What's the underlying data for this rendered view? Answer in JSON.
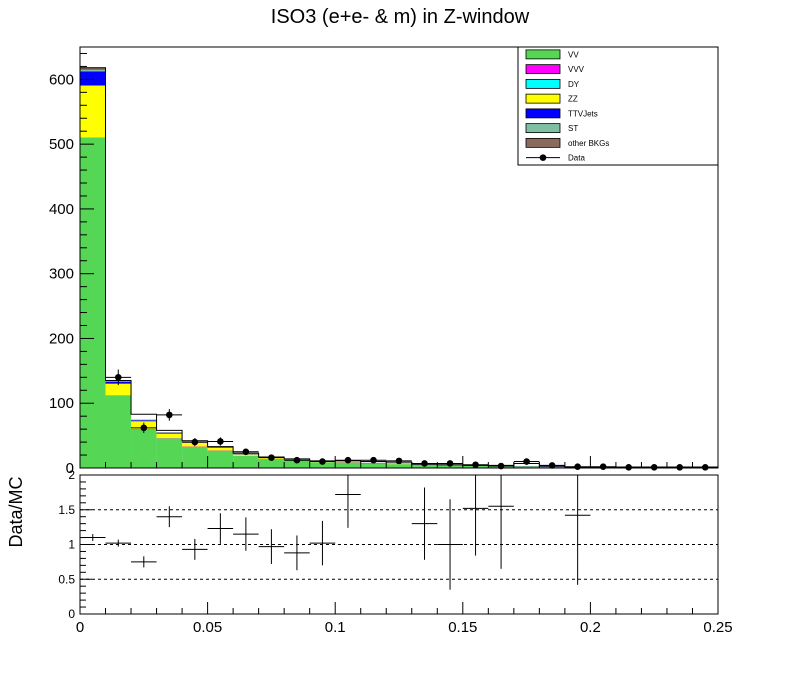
{
  "chart_data": {
    "type": "bar",
    "title": "ISO3 (e+e- & m) in Z-window",
    "xlabel": "",
    "ylabel": "",
    "ratio_ylabel": "Data/MC",
    "xlim": [
      0,
      0.25
    ],
    "ylim": [
      0,
      650
    ],
    "ratio_ylim": [
      0,
      2
    ],
    "bin_width": 0.01,
    "x_ticks": [
      "0",
      "0.05",
      "0.1",
      "0.15",
      "0.2",
      "0.25"
    ],
    "x_tick_values": [
      0,
      0.05,
      0.1,
      0.15,
      0.2,
      0.25
    ],
    "y_ticks": [
      "0",
      "100",
      "200",
      "300",
      "400",
      "500",
      "600"
    ],
    "y_tick_values": [
      0,
      100,
      200,
      300,
      400,
      500,
      600
    ],
    "ratio_y_ticks": [
      "0",
      "0.5",
      "1",
      "1.5",
      "2"
    ],
    "ratio_y_tick_values": [
      0,
      0.5,
      1,
      1.5,
      2
    ],
    "ratio_gridlines": [
      0.5,
      1,
      1.5
    ],
    "legend_position": "top-right",
    "series": [
      {
        "name": "VV",
        "color": "#55d655",
        "values": [
          510,
          112,
          60,
          46,
          33,
          27,
          19,
          14,
          12,
          9,
          8,
          7,
          6,
          5,
          4,
          3.5,
          3,
          2.5,
          2,
          2,
          1.5,
          1.5,
          1.2,
          1,
          1
        ]
      },
      {
        "name": "VVV",
        "color": "#ff00ff",
        "values": [
          0.5,
          0.2,
          0.1,
          0.1,
          0.1,
          0.1,
          0,
          0,
          0,
          0,
          0,
          0,
          0,
          0,
          0,
          0,
          0,
          0,
          0,
          0,
          0,
          0,
          0,
          0,
          0
        ]
      },
      {
        "name": "DY",
        "color": "#00ffff",
        "values": [
          0,
          0,
          0,
          0,
          0,
          0,
          0,
          0,
          0,
          0,
          0,
          0,
          0,
          0,
          0,
          0,
          0,
          0,
          0,
          0,
          0,
          0,
          0,
          0,
          0
        ]
      },
      {
        "name": "ZZ",
        "color": "#ffff00",
        "values": [
          80,
          18,
          12,
          7,
          6,
          4,
          2,
          1.5,
          1,
          0.8,
          0.6,
          0.5,
          0.4,
          0.3,
          0.3,
          0.2,
          0.2,
          0.1,
          0.1,
          0.1,
          0.1,
          0.1,
          0.1,
          0.1,
          0.1
        ]
      },
      {
        "name": "TTVJets",
        "color": "#0000ff",
        "values": [
          22,
          3,
          1.5,
          1.5,
          1,
          1,
          0.8,
          0.6,
          0.5,
          0.4,
          0.3,
          0.3,
          0.2,
          0.2,
          0.2,
          0.1,
          0.1,
          0.1,
          0.1,
          0.1,
          0.1,
          0.1,
          0.1,
          0.1,
          0.1
        ]
      },
      {
        "name": "ST",
        "color": "#7fbfa3",
        "values": [
          2,
          0.5,
          0.3,
          0.2,
          0.2,
          0.1,
          0.1,
          0.1,
          0.1,
          0,
          0,
          0,
          0,
          0,
          0,
          0,
          0,
          0,
          0,
          0,
          0,
          0,
          0,
          0,
          0
        ]
      },
      {
        "name": "other BKGs",
        "color": "#8b6a5e",
        "values": [
          4,
          1.5,
          0.7,
          0.5,
          0.3,
          0.3,
          0.2,
          0.2,
          0.1,
          0.1,
          0.1,
          0.1,
          0.1,
          0,
          0,
          0,
          0,
          0,
          0,
          0,
          0,
          0,
          0,
          0,
          0
        ]
      }
    ],
    "mc_total_outline": [
      618,
      135,
      83,
      58,
      42,
      33,
      23,
      17,
      14,
      11,
      11,
      10,
      9,
      6,
      5,
      4,
      4,
      7,
      3,
      1.5,
      1.5,
      1.5,
      1.5,
      1.5,
      1.5
    ],
    "data": {
      "name": "Data",
      "x": [
        0.005,
        0.015,
        0.025,
        0.035,
        0.045,
        0.055,
        0.065,
        0.075,
        0.085,
        0.095,
        0.105,
        0.115,
        0.125,
        0.135,
        0.145,
        0.155,
        0.165,
        0.175,
        0.185,
        0.195,
        0.205,
        0.215,
        0.225,
        0.235,
        0.245
      ],
      "y": [
        0,
        140,
        62,
        82,
        40,
        41,
        25,
        16,
        12,
        10,
        12,
        12,
        11,
        7,
        7,
        5,
        3,
        10,
        4,
        2,
        2,
        1,
        1,
        1,
        1
      ],
      "yerr": [
        0,
        12,
        8,
        9,
        6.3,
        6.4,
        5,
        4,
        3.5,
        3.2,
        3.5,
        3.5,
        3.3,
        2.6,
        2.6,
        2.2,
        1.7,
        3.2,
        2,
        1.4,
        1.4,
        1,
        1,
        1,
        1
      ]
    },
    "ratio": {
      "x": [
        0.005,
        0.015,
        0.025,
        0.035,
        0.045,
        0.055,
        0.065,
        0.075,
        0.085,
        0.095,
        0.105,
        0.135,
        0.145,
        0.155,
        0.165,
        0.195
      ],
      "y": [
        1.1,
        1.02,
        0.75,
        1.4,
        0.93,
        1.23,
        1.15,
        0.97,
        0.88,
        1.02,
        1.72,
        1.3,
        1.0,
        1.52,
        1.55,
        1.42
      ],
      "yerr": [
        0.05,
        0.05,
        0.08,
        0.15,
        0.15,
        0.22,
        0.24,
        0.25,
        0.25,
        0.32,
        0.48,
        0.52,
        0.65,
        0.68,
        0.9,
        1.0
      ]
    }
  }
}
